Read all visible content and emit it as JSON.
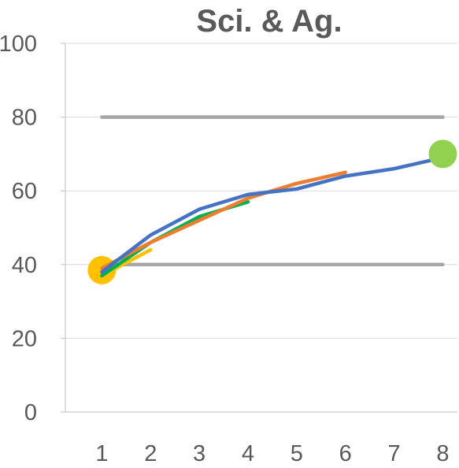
{
  "chart_data": {
    "type": "line",
    "title": "Sci. & Ag.",
    "xlabel": "",
    "ylabel": "",
    "x": [
      1,
      2,
      3,
      4,
      5,
      6,
      7,
      8
    ],
    "xlim": [
      0.25,
      8.3
    ],
    "ylim": [
      0,
      100
    ],
    "y_ticks": [
      0,
      20,
      40,
      60,
      80,
      100
    ],
    "x_ticks": [
      1,
      2,
      3,
      4,
      5,
      6,
      7,
      8
    ],
    "grid": "horizontal",
    "legend": "none",
    "reference_lines": [
      {
        "y": 80,
        "x_start": 1,
        "x_end": 8,
        "color": "#a6a6a6"
      },
      {
        "y": 40,
        "x_start": 1,
        "x_end": 8,
        "color": "#a6a6a6"
      }
    ],
    "series": [
      {
        "x": [
          1,
          2
        ],
        "values": [
          37,
          44
        ],
        "color": "#ffc000"
      },
      {
        "x": [
          1,
          2,
          3,
          4
        ],
        "values": [
          37,
          46,
          53,
          57
        ],
        "color": "#00b050"
      },
      {
        "x": [
          1,
          2,
          3,
          4,
          5,
          6
        ],
        "values": [
          39,
          46,
          52,
          58,
          62,
          65
        ],
        "color": "#ed7d31"
      },
      {
        "x": [
          1,
          2,
          3,
          4,
          5,
          6,
          7,
          8
        ],
        "values": [
          38,
          48,
          55,
          59,
          60.5,
          64,
          66,
          69
        ],
        "color": "#4472c4"
      }
    ],
    "markers": [
      {
        "x": 1,
        "y": 38.5,
        "color": "#ffc000"
      },
      {
        "x": 8,
        "y": 70,
        "color": "#92d050"
      }
    ]
  }
}
